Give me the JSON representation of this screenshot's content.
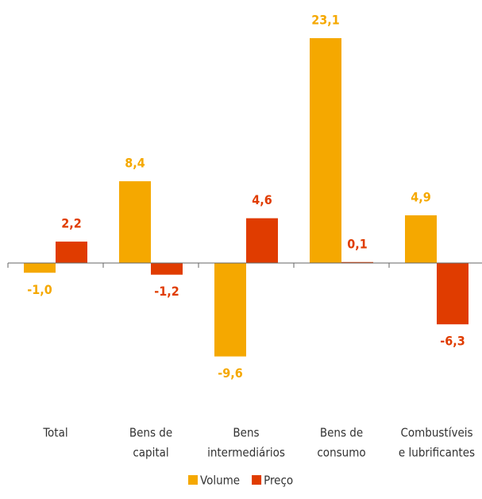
{
  "chart_data": {
    "type": "bar",
    "categories": [
      [
        "Total"
      ],
      [
        "Bens de",
        "capital"
      ],
      [
        "Bens",
        "intermediários"
      ],
      [
        "Bens de",
        "consumo"
      ],
      [
        "Combustíveis",
        "e lubrificantes"
      ]
    ],
    "series": [
      {
        "name": "Volume",
        "color": "#f5a800",
        "values": [
          -1.0,
          8.4,
          -9.6,
          23.1,
          4.9
        ],
        "value_labels": [
          "-1,0",
          "8,4",
          "-9,6",
          "23,1",
          "4,9"
        ]
      },
      {
        "name": "Preço",
        "color": "#e03c00",
        "values": [
          2.2,
          -1.2,
          4.6,
          0.1,
          -6.3
        ],
        "value_labels": [
          "2,2",
          "-1,2",
          "4,6",
          "0,1",
          "-6,3"
        ]
      }
    ],
    "ylim": [
      -10,
      24
    ]
  }
}
